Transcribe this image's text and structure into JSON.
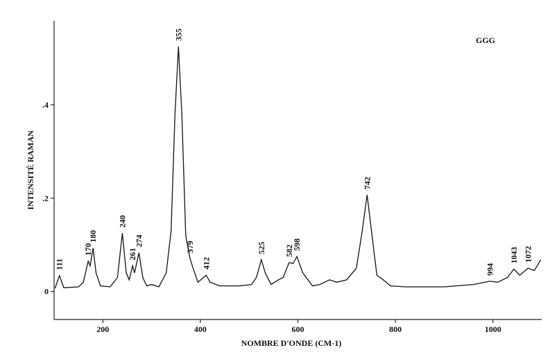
{
  "chart_data": {
    "type": "line",
    "title": "GGG",
    "x_label": "NOMBRE D'ONDE (CM-1)",
    "y_label": "INTENSITÉ RAMAN",
    "xlim": [
      100,
      1100
    ],
    "ylim": [
      -0.06,
      0.58
    ],
    "xticks": [
      200,
      400,
      600,
      800,
      1000
    ],
    "yticks": [
      0,
      {
        "value": 0.2,
        "label": ".2"
      },
      {
        "value": 0.4,
        "label": ".4"
      }
    ],
    "series": [
      {
        "color": "#111111",
        "x": [
          102,
          111,
          120,
          150,
          160,
          170,
          174,
          180,
          186,
          195,
          215,
          230,
          240,
          248,
          254,
          261,
          265,
          274,
          282,
          290,
          300,
          315,
          330,
          340,
          348,
          355,
          362,
          370,
          379,
          385,
          395,
          412,
          420,
          440,
          480,
          505,
          515,
          525,
          533,
          545,
          560,
          570,
          582,
          590,
          598,
          610,
          630,
          645,
          665,
          680,
          700,
          720,
          732,
          742,
          752,
          762,
          775,
          790,
          820,
          900,
          960,
          994,
          1010,
          1030,
          1043,
          1055,
          1072,
          1085,
          1098
        ],
        "values": [
          0.007,
          0.034,
          0.008,
          0.01,
          0.02,
          0.065,
          0.055,
          0.093,
          0.04,
          0.012,
          0.01,
          0.03,
          0.125,
          0.04,
          0.025,
          0.055,
          0.04,
          0.083,
          0.03,
          0.012,
          0.015,
          0.01,
          0.04,
          0.13,
          0.38,
          0.525,
          0.38,
          0.12,
          0.07,
          0.05,
          0.02,
          0.035,
          0.02,
          0.012,
          0.012,
          0.015,
          0.03,
          0.068,
          0.04,
          0.015,
          0.025,
          0.03,
          0.062,
          0.06,
          0.075,
          0.04,
          0.012,
          0.015,
          0.025,
          0.02,
          0.025,
          0.05,
          0.13,
          0.207,
          0.12,
          0.035,
          0.025,
          0.012,
          0.01,
          0.01,
          0.015,
          0.022,
          0.02,
          0.03,
          0.048,
          0.035,
          0.05,
          0.045,
          0.068
        ]
      }
    ],
    "peaks": [
      111,
      170,
      180,
      240,
      261,
      274,
      355,
      379,
      412,
      525,
      582,
      598,
      742,
      994,
      1043,
      1072
    ]
  }
}
